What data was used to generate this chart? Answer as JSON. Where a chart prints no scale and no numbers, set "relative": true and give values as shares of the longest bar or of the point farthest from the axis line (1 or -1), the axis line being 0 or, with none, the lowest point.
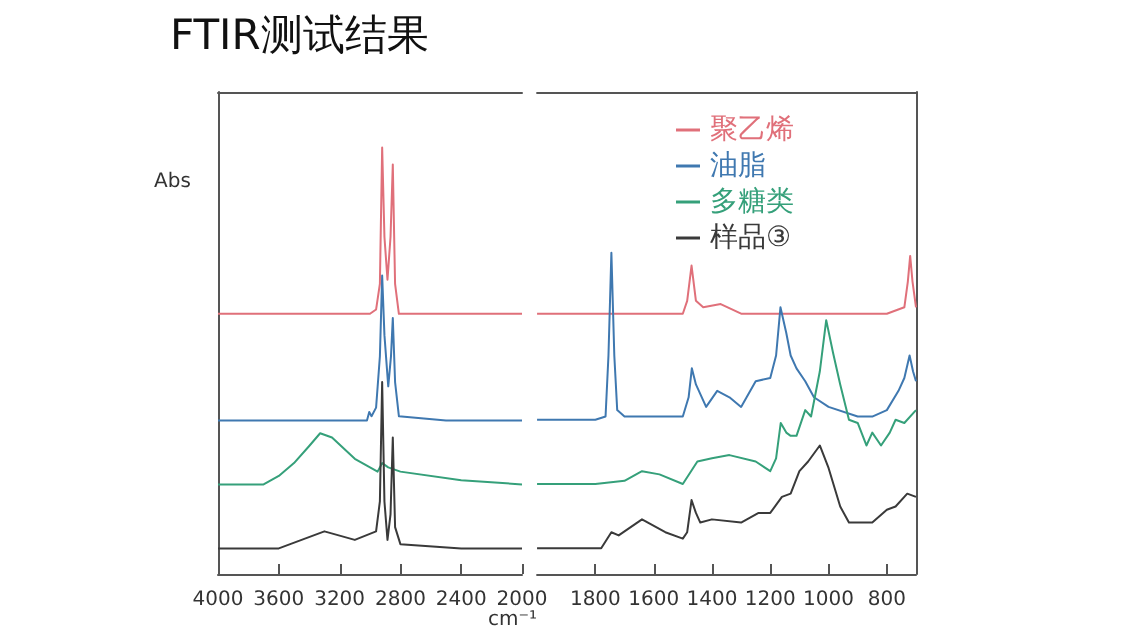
{
  "chart_data": [
    {
      "type": "line",
      "title": "FTIR测试结果",
      "ylabel": "Abs",
      "relative": true,
      "xlim": [
        4000,
        2000
      ],
      "xticks": [
        4000,
        3600,
        3200,
        2800,
        2400,
        2000
      ],
      "series": [
        {
          "color": "#e0707a",
          "x": [
            4000,
            3500,
            3000,
            2960,
            2935,
            2920,
            2905,
            2885,
            2865,
            2850,
            2835,
            2810,
            2500,
            2000
          ],
          "values": [
            0.61,
            0.61,
            0.61,
            0.62,
            0.68,
            1,
            0.79,
            0.69,
            0.79,
            0.96,
            0.68,
            0.61,
            0.61,
            0.61
          ]
        },
        {
          "color": "#3f78b0",
          "x": [
            4000,
            3500,
            3020,
            3005,
            2990,
            2960,
            2935,
            2920,
            2905,
            2880,
            2862,
            2850,
            2835,
            2810,
            2500,
            2000
          ],
          "values": [
            0.36,
            0.36,
            0.36,
            0.38,
            0.37,
            0.39,
            0.51,
            0.7,
            0.56,
            0.44,
            0.51,
            0.6,
            0.45,
            0.37,
            0.36,
            0.36
          ]
        },
        {
          "color": "#35a07a",
          "x": [
            4000,
            3700,
            3600,
            3500,
            3400,
            3328,
            3250,
            3100,
            2950,
            2920,
            2880,
            2800,
            2400,
            2000
          ],
          "values": [
            0.21,
            0.21,
            0.23,
            0.26,
            0.3,
            0.33,
            0.32,
            0.27,
            0.24,
            0.26,
            0.25,
            0.24,
            0.22,
            0.21
          ]
        },
        {
          "color": "#3a3a3a",
          "x": [
            4000,
            3600,
            3450,
            3300,
            3100,
            2960,
            2935,
            2920,
            2905,
            2885,
            2865,
            2850,
            2835,
            2800,
            2400,
            2000
          ],
          "values": [
            0.06,
            0.06,
            0.08,
            0.1,
            0.08,
            0.1,
            0.17,
            0.45,
            0.17,
            0.08,
            0.14,
            0.32,
            0.11,
            0.07,
            0.06,
            0.06
          ]
        }
      ]
    },
    {
      "type": "line",
      "xlabel": "cm⁻¹",
      "relative": true,
      "xlim": [
        2000,
        700
      ],
      "xticks": [
        1800,
        1600,
        1400,
        1200,
        1000,
        800
      ],
      "legend": "top right",
      "series": [
        {
          "name": "聚乙烯",
          "color": "#e0707a",
          "x": [
            2000,
            1700,
            1500,
            1485,
            1470,
            1455,
            1430,
            1370,
            1300,
            1000,
            800,
            740,
            728,
            720,
            712,
            700
          ],
          "values": [
            0.81,
            0.81,
            0.81,
            0.85,
            0.96,
            0.85,
            0.83,
            0.84,
            0.81,
            0.81,
            0.81,
            0.83,
            0.91,
            0.99,
            0.91,
            0.83
          ]
        },
        {
          "name": "油脂",
          "color": "#3f78b0",
          "x": [
            2000,
            1800,
            1765,
            1755,
            1745,
            1735,
            1725,
            1700,
            1500,
            1480,
            1469,
            1455,
            1420,
            1382,
            1340,
            1300,
            1250,
            1200,
            1180,
            1165,
            1145,
            1130,
            1110,
            1080,
            1050,
            1000,
            900,
            850,
            800,
            760,
            740,
            722,
            710,
            700
          ],
          "values": [
            0.48,
            0.48,
            0.49,
            0.68,
            1,
            0.68,
            0.51,
            0.49,
            0.49,
            0.55,
            0.64,
            0.59,
            0.52,
            0.57,
            0.55,
            0.52,
            0.6,
            0.61,
            0.68,
            0.83,
            0.75,
            0.68,
            0.64,
            0.6,
            0.55,
            0.52,
            0.49,
            0.49,
            0.51,
            0.57,
            0.61,
            0.68,
            0.63,
            0.6
          ]
        },
        {
          "name": "多糖类",
          "color": "#35a07a",
          "x": [
            2000,
            1800,
            1700,
            1640,
            1580,
            1500,
            1450,
            1400,
            1340,
            1250,
            1200,
            1180,
            1164,
            1145,
            1130,
            1110,
            1080,
            1060,
            1045,
            1030,
            1008,
            985,
            960,
            930,
            900,
            870,
            850,
            820,
            790,
            770,
            740,
            700
          ],
          "values": [
            0.28,
            0.28,
            0.29,
            0.32,
            0.31,
            0.28,
            0.35,
            0.36,
            0.37,
            0.35,
            0.32,
            0.36,
            0.47,
            0.44,
            0.43,
            0.43,
            0.51,
            0.49,
            0.56,
            0.63,
            0.79,
            0.69,
            0.59,
            0.48,
            0.47,
            0.4,
            0.44,
            0.4,
            0.44,
            0.48,
            0.47,
            0.51
          ]
        },
        {
          "name": "样品③",
          "color": "#3a3a3a",
          "x": [
            2000,
            1780,
            1745,
            1720,
            1640,
            1560,
            1500,
            1485,
            1470,
            1455,
            1440,
            1400,
            1300,
            1240,
            1200,
            1160,
            1130,
            1100,
            1070,
            1030,
            1000,
            960,
            930,
            850,
            800,
            770,
            730,
            700
          ],
          "values": [
            0.08,
            0.08,
            0.13,
            0.12,
            0.17,
            0.13,
            0.11,
            0.13,
            0.23,
            0.19,
            0.16,
            0.17,
            0.16,
            0.19,
            0.19,
            0.24,
            0.25,
            0.32,
            0.35,
            0.4,
            0.33,
            0.21,
            0.16,
            0.16,
            0.2,
            0.21,
            0.25,
            0.24
          ]
        }
      ]
    }
  ]
}
